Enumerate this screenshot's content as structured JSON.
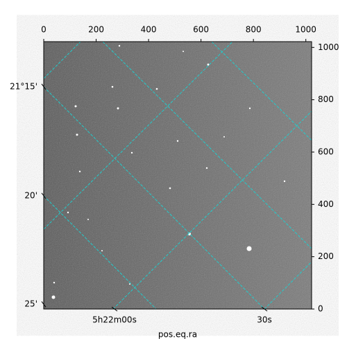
{
  "chart_data": {
    "type": "image",
    "xlabel": "pos.eq.ra",
    "xlim": [
      0,
      1022
    ],
    "ylim": [
      0,
      1022
    ],
    "xticks": [
      0,
      200,
      400,
      600,
      800,
      1000
    ],
    "yticks": [
      0,
      200,
      400,
      600,
      800,
      1000
    ],
    "dec_ticks": [
      {
        "value": 850,
        "label": "21°15'"
      },
      {
        "value": 433,
        "label": "20'"
      },
      {
        "value": 18,
        "label": "25'"
      }
    ],
    "ra_ticks": [
      {
        "value": 270,
        "label": "5h22m00s"
      },
      {
        "value": 842,
        "label": "30s"
      }
    ],
    "grid_color": "#22cccc"
  }
}
